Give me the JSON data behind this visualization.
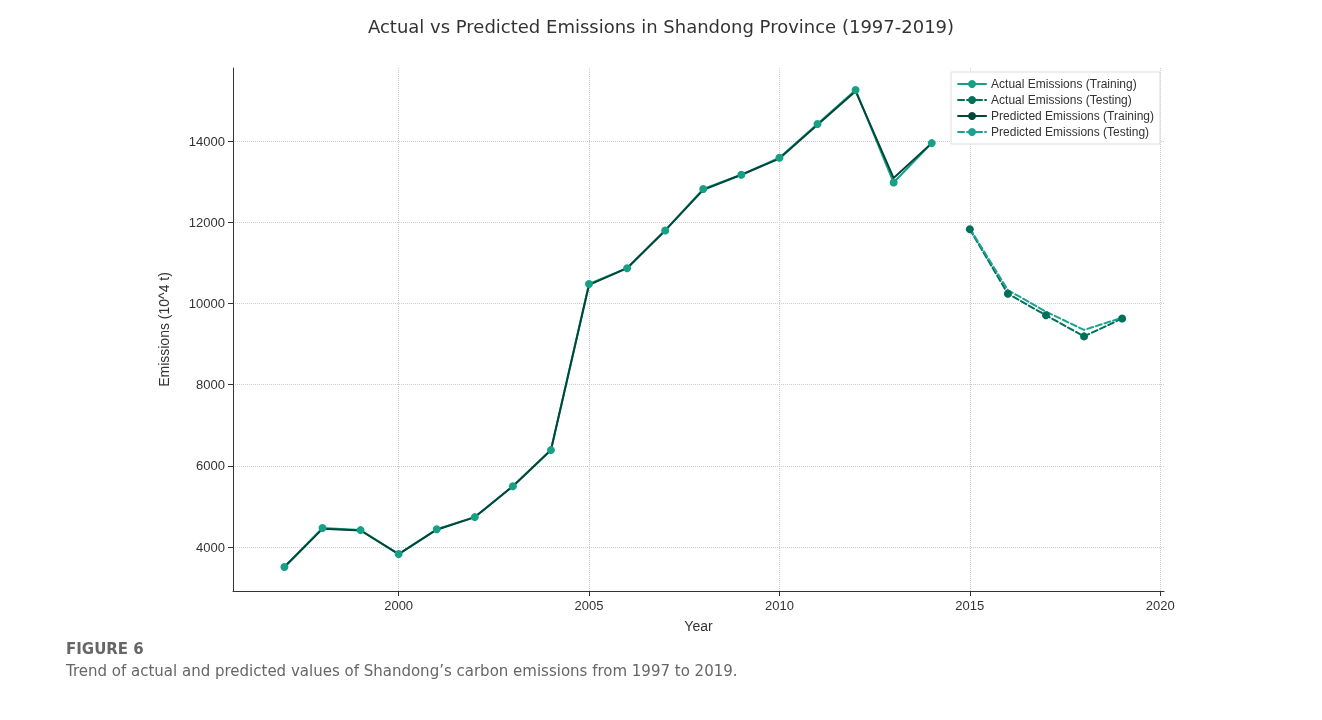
{
  "chart_data": {
    "type": "line",
    "title": "Actual vs Predicted Emissions in Shandong Province (1997-2019)",
    "xlabel": "Year",
    "ylabel": "Emissions (10^4 t)",
    "xlim": [
      1995.65,
      2020.1
    ],
    "xticks": [
      2000,
      2005,
      2010,
      2015,
      2020
    ],
    "ylim": [
      2920,
      15800
    ],
    "yticks": [
      4000,
      6000,
      8000,
      10000,
      12000,
      14000
    ],
    "grid": true,
    "legend": "top right",
    "series": [
      {
        "name": "Actual Emissions (Training)",
        "color": "#16a085",
        "marker": "circle",
        "line_style": "solid",
        "x": [
          1997,
          1998,
          1999,
          2000,
          2001,
          2002,
          2003,
          2004,
          2005,
          2006,
          2007,
          2008,
          2009,
          2010,
          2011,
          2012,
          2013,
          2014
        ],
        "values": [
          3510,
          4470,
          4420,
          3830,
          4440,
          4740,
          5500,
          6390,
          10480,
          10870,
          11800,
          12820,
          13170,
          13590,
          14420,
          15260,
          12980,
          13950
        ]
      },
      {
        "name": "Actual Emissions (Testing)",
        "color": "#00705a",
        "marker": "circle",
        "line_style": "dashed",
        "x": [
          2015,
          2016,
          2017,
          2018,
          2019
        ],
        "values": [
          11830,
          10240,
          9710,
          9190,
          9630
        ]
      },
      {
        "name": "Predicted Emissions (Training)",
        "color": "#00473a",
        "marker": "none",
        "line_style": "solid",
        "x": [
          1997,
          1998,
          1999,
          2000,
          2001,
          2002,
          2003,
          2004,
          2005,
          2006,
          2007,
          2008,
          2009,
          2010,
          2011,
          2012,
          2013,
          2014
        ],
        "values": [
          3510,
          4450,
          4410,
          3830,
          4430,
          4740,
          5500,
          6390,
          10460,
          10870,
          11800,
          12800,
          13170,
          13570,
          14400,
          15230,
          13090,
          13950
        ]
      },
      {
        "name": "Predicted Emissions (Testing)",
        "color": "#1aa394",
        "marker": "none",
        "line_style": "dashed",
        "x": [
          2015,
          2016,
          2017,
          2018,
          2019
        ],
        "values": [
          11850,
          10330,
          9800,
          9350,
          9650
        ]
      }
    ],
    "annotations": [
      "FIGURE 6",
      "Trend of actual and predicted values of Shandong’s carbon emissions from 1997 to 2019."
    ]
  }
}
